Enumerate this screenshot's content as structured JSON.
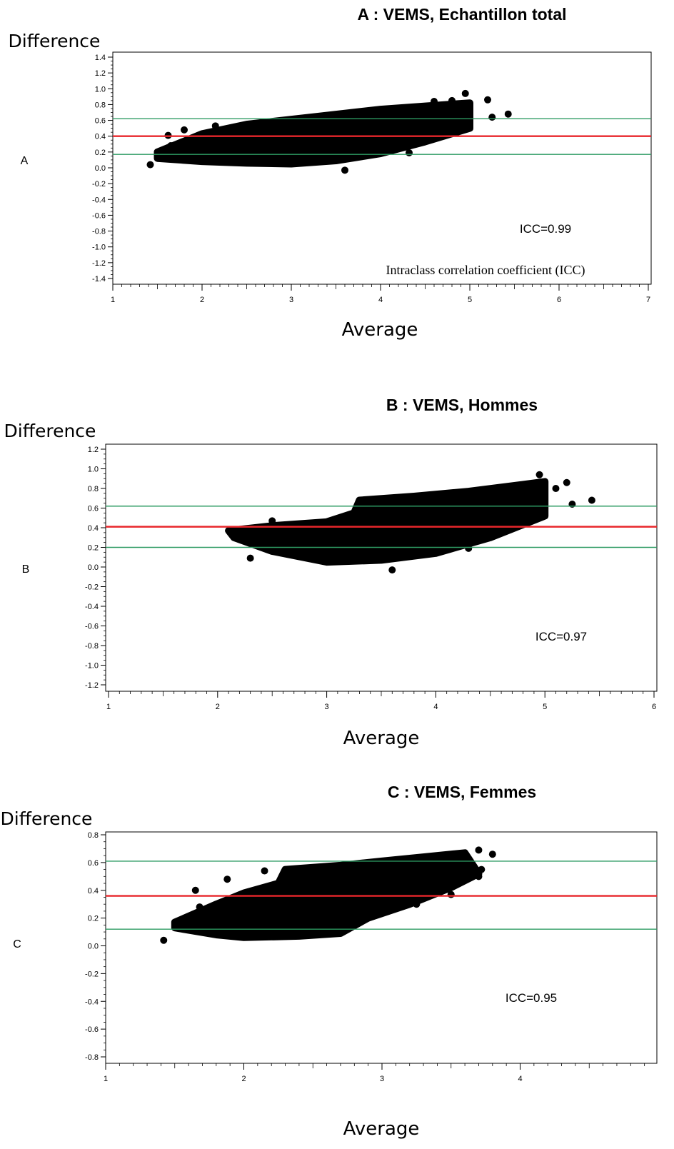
{
  "chart_data": [
    {
      "type": "scatter",
      "panel_label": "A",
      "title": "A : VEMS, Echantillon total",
      "ylabel": "Difference",
      "xlabel": "Average",
      "xlim": [
        1,
        7
      ],
      "ylim": [
        -1.4,
        1.4
      ],
      "x_ticks": [
        "1",
        "2",
        "3",
        "4",
        "5",
        "6",
        "7"
      ],
      "y_ticks": [
        "1.4",
        "1.2",
        "1.0",
        "0.8",
        "0.6",
        "0.4",
        "0.2",
        "0.0",
        "-0.2",
        "-0.4",
        "-0.6",
        "-0.8",
        "-1.0",
        "-1.2",
        "-1.4"
      ],
      "mean_line": 0.4,
      "upper_limit": 0.62,
      "lower_limit": 0.17,
      "line_colors": {
        "mean": "#e8262b",
        "limits": "#2e9b63"
      },
      "annotation": "ICC=0.99",
      "note": "Intraclass correlation coefficient (ICC)",
      "cloud": [
        [
          1.5,
          0.18
        ],
        [
          2.0,
          0.25
        ],
        [
          3.0,
          0.35
        ],
        [
          4.0,
          0.48
        ],
        [
          5.0,
          0.58
        ]
      ],
      "cloud_upper": [
        [
          1.5,
          0.2
        ],
        [
          2.0,
          0.43
        ],
        [
          2.5,
          0.55
        ],
        [
          3.3,
          0.65
        ],
        [
          4.0,
          0.74
        ],
        [
          4.5,
          0.78
        ],
        [
          5.0,
          0.82
        ]
      ],
      "cloud_lower": [
        [
          1.5,
          0.12
        ],
        [
          2.0,
          0.08
        ],
        [
          2.5,
          0.06
        ],
        [
          3.0,
          0.05
        ],
        [
          3.5,
          0.09
        ],
        [
          4.0,
          0.18
        ],
        [
          4.5,
          0.33
        ],
        [
          5.0,
          0.5
        ]
      ],
      "points": [
        [
          1.42,
          0.04
        ],
        [
          1.62,
          0.41
        ],
        [
          1.65,
          0.28
        ],
        [
          1.8,
          0.48
        ],
        [
          2.15,
          0.53
        ],
        [
          3.6,
          -0.03
        ],
        [
          4.32,
          0.19
        ],
        [
          4.95,
          0.94
        ],
        [
          5.2,
          0.86
        ],
        [
          5.25,
          0.64
        ],
        [
          5.43,
          0.68
        ],
        [
          5.0,
          0.78
        ],
        [
          4.8,
          0.85
        ],
        [
          4.6,
          0.84
        ]
      ]
    },
    {
      "type": "scatter",
      "panel_label": "B",
      "title": "B : VEMS, Hommes",
      "ylabel": "Difference",
      "xlabel": "Average",
      "xlim": [
        1,
        6
      ],
      "ylim": [
        -1.2,
        1.2
      ],
      "x_ticks": [
        "1",
        "2",
        "3",
        "4",
        "5",
        "6"
      ],
      "y_ticks": [
        "1.2",
        "1.0",
        "0.8",
        "0.6",
        "0.4",
        "0.2",
        "0.0",
        "-0.2",
        "-0.4",
        "-0.6",
        "-0.8",
        "-1.0",
        "-1.2"
      ],
      "mean_line": 0.41,
      "upper_limit": 0.62,
      "lower_limit": 0.2,
      "line_colors": {
        "mean": "#e8262b",
        "limits": "#2e9b63"
      },
      "annotation": "ICC=0.97",
      "cloud": [
        [
          2.1,
          0.33
        ],
        [
          2.6,
          0.3
        ],
        [
          3.0,
          0.32
        ],
        [
          3.5,
          0.4
        ],
        [
          4.0,
          0.45
        ],
        [
          4.5,
          0.52
        ],
        [
          5.0,
          0.58
        ]
      ],
      "cloud_upper": [
        [
          2.1,
          0.37
        ],
        [
          2.5,
          0.42
        ],
        [
          3.0,
          0.46
        ],
        [
          3.25,
          0.55
        ],
        [
          3.3,
          0.68
        ],
        [
          3.8,
          0.72
        ],
        [
          4.3,
          0.77
        ],
        [
          4.8,
          0.84
        ],
        [
          5.0,
          0.87
        ]
      ],
      "cloud_lower": [
        [
          2.15,
          0.3
        ],
        [
          2.5,
          0.16
        ],
        [
          3.0,
          0.05
        ],
        [
          3.5,
          0.07
        ],
        [
          4.0,
          0.14
        ],
        [
          4.5,
          0.3
        ],
        [
          5.0,
          0.52
        ]
      ],
      "points": [
        [
          2.3,
          0.09
        ],
        [
          2.5,
          0.47
        ],
        [
          3.6,
          -0.03
        ],
        [
          4.95,
          0.94
        ],
        [
          5.2,
          0.86
        ],
        [
          5.25,
          0.64
        ],
        [
          5.43,
          0.68
        ],
        [
          5.1,
          0.8
        ],
        [
          4.8,
          0.8
        ],
        [
          4.3,
          0.19
        ]
      ]
    },
    {
      "type": "scatter",
      "panel_label": "C",
      "title": "C : VEMS, Femmes",
      "ylabel": "Difference",
      "xlabel": "Average",
      "xlim": [
        1,
        5
      ],
      "ylim": [
        -0.8,
        0.8
      ],
      "x_ticks": [
        "1",
        "2",
        "3",
        "4"
      ],
      "y_ticks": [
        "0.8",
        "0.6",
        "0.4",
        "0.2",
        "0.0",
        "-0.2",
        "-0.4",
        "-0.6",
        "-0.8"
      ],
      "mean_line": 0.36,
      "upper_limit": 0.61,
      "lower_limit": 0.12,
      "line_colors": {
        "mean": "#e8262b",
        "limits": "#2e9b63"
      },
      "annotation": "ICC=0.95",
      "cloud": [
        [
          1.5,
          0.15
        ],
        [
          2.0,
          0.22
        ],
        [
          2.5,
          0.3
        ],
        [
          3.0,
          0.4
        ],
        [
          3.5,
          0.5
        ],
        [
          3.7,
          0.55
        ]
      ],
      "cloud_upper": [
        [
          1.5,
          0.17
        ],
        [
          1.8,
          0.3
        ],
        [
          2.0,
          0.38
        ],
        [
          2.25,
          0.45
        ],
        [
          2.3,
          0.55
        ],
        [
          2.7,
          0.58
        ],
        [
          3.0,
          0.61
        ],
        [
          3.3,
          0.64
        ],
        [
          3.6,
          0.67
        ]
      ],
      "cloud_lower": [
        [
          1.5,
          0.13
        ],
        [
          1.8,
          0.08
        ],
        [
          2.0,
          0.06
        ],
        [
          2.4,
          0.07
        ],
        [
          2.7,
          0.09
        ],
        [
          2.9,
          0.2
        ],
        [
          3.2,
          0.3
        ],
        [
          3.5,
          0.42
        ],
        [
          3.7,
          0.52
        ]
      ],
      "points": [
        [
          1.42,
          0.04
        ],
        [
          1.65,
          0.4
        ],
        [
          1.68,
          0.28
        ],
        [
          1.88,
          0.48
        ],
        [
          2.15,
          0.54
        ],
        [
          2.9,
          0.2
        ],
        [
          3.25,
          0.3
        ],
        [
          3.5,
          0.37
        ],
        [
          3.7,
          0.5
        ],
        [
          3.72,
          0.55
        ],
        [
          3.8,
          0.66
        ],
        [
          3.7,
          0.69
        ],
        [
          3.6,
          0.66
        ]
      ]
    }
  ]
}
